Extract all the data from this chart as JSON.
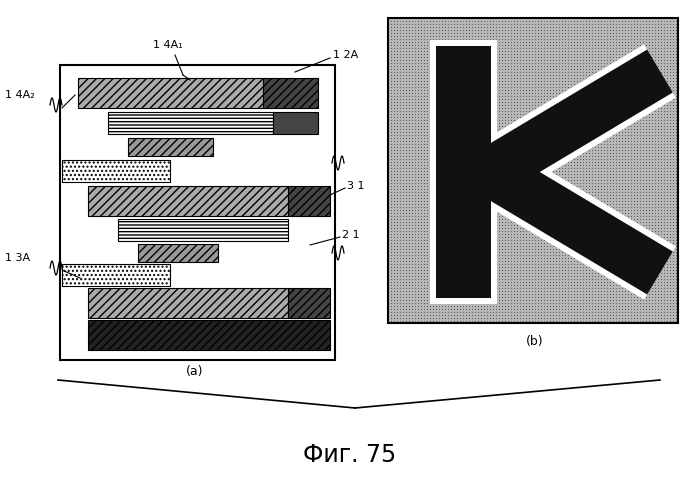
{
  "fig_width": 6.99,
  "fig_height": 4.84,
  "dpi": 100,
  "bg_color": "#ffffff",
  "title": "Фиг. 75",
  "label_a": "(a)",
  "label_b": "(b)",
  "ann_14A1": "1 4A₁",
  "ann_12A": "1 2A",
  "ann_14A2": "1 4A₂",
  "ann_31": "3 1",
  "ann_13A": "1 3A",
  "ann_21": "2 1"
}
